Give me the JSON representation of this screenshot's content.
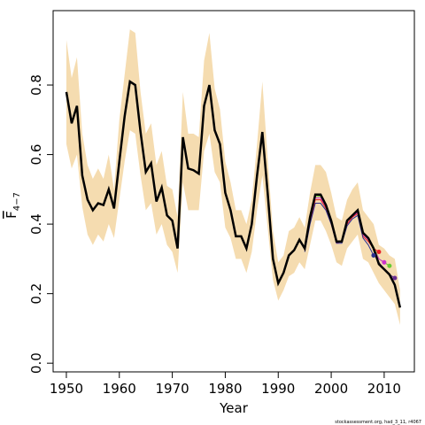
{
  "chart_data": {
    "type": "line",
    "xlabel": "Year",
    "ylabel": {
      "main": "F",
      "sub": "4−7"
    },
    "footer": "stockassessment.org, had_3_11, r4067",
    "xlim": [
      1947.5,
      2015.7
    ],
    "ylim": [
      -0.025,
      1.014
    ],
    "xticks": [
      1950,
      1960,
      1970,
      1980,
      1990,
      2000,
      2010
    ],
    "yticks": [
      {
        "value": 0,
        "label": "0.0"
      },
      0.2,
      0.4,
      0.6,
      0.8
    ],
    "band": {
      "color": "#f5dcb0",
      "lower": [
        0.63,
        0.56,
        0.6,
        0.45,
        0.37,
        0.34,
        0.37,
        0.35,
        0.4,
        0.36,
        0.47,
        0.58,
        0.67,
        0.66,
        0.54,
        0.44,
        0.46,
        0.37,
        0.4,
        0.34,
        0.32,
        0.26,
        0.52,
        0.44,
        0.44,
        0.44,
        0.61,
        0.66,
        0.55,
        0.52,
        0.39,
        0.36,
        0.3,
        0.3,
        0.26,
        0.32,
        0.44,
        0.54,
        0.39,
        0.24,
        0.18,
        0.21,
        0.25,
        0.26,
        0.29,
        0.27,
        0.34,
        0.41,
        0.41,
        0.38,
        0.34,
        0.29,
        0.28,
        0.33,
        0.35,
        0.37,
        0.3,
        0.29,
        0.26,
        0.23,
        0.21,
        0.19,
        0.17,
        0.11
      ],
      "upper": [
        0.93,
        0.82,
        0.88,
        0.66,
        0.57,
        0.53,
        0.56,
        0.53,
        0.6,
        0.5,
        0.7,
        0.83,
        0.96,
        0.95,
        0.78,
        0.66,
        0.69,
        0.57,
        0.61,
        0.51,
        0.5,
        0.42,
        0.78,
        0.66,
        0.66,
        0.65,
        0.87,
        0.95,
        0.79,
        0.73,
        0.58,
        0.52,
        0.44,
        0.44,
        0.4,
        0.47,
        0.63,
        0.81,
        0.59,
        0.38,
        0.29,
        0.31,
        0.38,
        0.39,
        0.42,
        0.39,
        0.49,
        0.57,
        0.57,
        0.55,
        0.49,
        0.42,
        0.41,
        0.47,
        0.5,
        0.52,
        0.44,
        0.42,
        0.4,
        0.34,
        0.33,
        0.31,
        0.3,
        0.21
      ]
    },
    "x": [
      1950,
      1951,
      1952,
      1953,
      1954,
      1955,
      1956,
      1957,
      1958,
      1959,
      1960,
      1961,
      1962,
      1963,
      1964,
      1965,
      1966,
      1967,
      1968,
      1969,
      1970,
      1971,
      1972,
      1973,
      1974,
      1975,
      1976,
      1977,
      1978,
      1979,
      1980,
      1981,
      1982,
      1983,
      1984,
      1985,
      1986,
      1987,
      1988,
      1989,
      1990,
      1991,
      1992,
      1993,
      1994,
      1995,
      1996,
      1997,
      1998,
      1999,
      2000,
      2001,
      2002,
      2003,
      2004,
      2005,
      2006,
      2007,
      2008,
      2009,
      2010,
      2011,
      2012,
      2013
    ],
    "series": [
      {
        "color": "#000000",
        "values": [
          0.78,
          0.69,
          0.74,
          0.54,
          0.47,
          0.44,
          0.46,
          0.455,
          0.5,
          0.445,
          0.58,
          0.71,
          0.81,
          0.8,
          0.665,
          0.55,
          0.575,
          0.465,
          0.505,
          0.425,
          0.41,
          0.33,
          0.65,
          0.56,
          0.555,
          0.545,
          0.74,
          0.8,
          0.67,
          0.63,
          0.49,
          0.44,
          0.365,
          0.365,
          0.33,
          0.4,
          0.54,
          0.665,
          0.49,
          0.3,
          0.23,
          0.26,
          0.31,
          0.325,
          0.355,
          0.33,
          0.42,
          0.485,
          0.485,
          0.455,
          0.41,
          0.35,
          0.35,
          0.41,
          0.425,
          0.44,
          0.375,
          0.36,
          0.33,
          0.285,
          0.27,
          0.255,
          0.225,
          0.16
        ]
      }
    ],
    "retro": [
      {
        "color": "#6a2c91",
        "x": [
          1995,
          1996,
          1997,
          1998,
          1999,
          2000,
          2001,
          2002,
          2003,
          2004,
          2005,
          2006,
          2007,
          2008,
          2009,
          2010,
          2011,
          2012
        ],
        "values": [
          0.33,
          0.42,
          0.485,
          0.48,
          0.455,
          0.41,
          0.35,
          0.35,
          0.41,
          0.425,
          0.44,
          0.375,
          0.36,
          0.33,
          0.29,
          0.27,
          0.255,
          0.245
        ]
      },
      {
        "color": "#66cc33",
        "x": [
          1995,
          1996,
          1997,
          1998,
          1999,
          2000,
          2001,
          2002,
          2003,
          2004,
          2005,
          2006,
          2007,
          2008,
          2009,
          2010,
          2011
        ],
        "values": [
          0.33,
          0.42,
          0.48,
          0.48,
          0.45,
          0.41,
          0.35,
          0.35,
          0.41,
          0.425,
          0.44,
          0.375,
          0.36,
          0.335,
          0.3,
          0.29,
          0.28
        ]
      },
      {
        "color": "#cc33cc",
        "x": [
          1995,
          1996,
          1997,
          1998,
          1999,
          2000,
          2001,
          2002,
          2003,
          2004,
          2005,
          2006,
          2007,
          2008,
          2009,
          2010
        ],
        "values": [
          0.33,
          0.41,
          0.475,
          0.475,
          0.45,
          0.405,
          0.35,
          0.35,
          0.4,
          0.42,
          0.435,
          0.37,
          0.355,
          0.33,
          0.3,
          0.29
        ]
      },
      {
        "color": "#e8202a",
        "x": [
          1995,
          1996,
          1997,
          1998,
          1999,
          2000,
          2001,
          2002,
          2003,
          2004,
          2005,
          2006,
          2007,
          2008,
          2009
        ],
        "values": [
          0.325,
          0.405,
          0.47,
          0.47,
          0.445,
          0.4,
          0.345,
          0.35,
          0.4,
          0.42,
          0.43,
          0.365,
          0.35,
          0.33,
          0.32
        ]
      },
      {
        "color": "#2b2f8f",
        "x": [
          1995,
          1996,
          1997,
          1998,
          1999,
          2000,
          2001,
          2002,
          2003,
          2004,
          2005,
          2006,
          2007,
          2008
        ],
        "values": [
          0.32,
          0.4,
          0.46,
          0.46,
          0.44,
          0.4,
          0.345,
          0.345,
          0.395,
          0.415,
          0.425,
          0.36,
          0.34,
          0.31
        ]
      }
    ]
  }
}
